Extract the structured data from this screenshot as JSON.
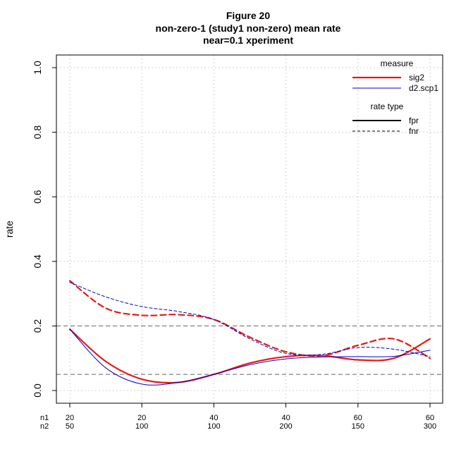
{
  "chart_data": {
    "type": "line",
    "title": "Figure 20",
    "subtitle_lines": [
      "non-zero-1 (study1 non-zero) mean rate",
      "near=0.1 xperiment"
    ],
    "xlabel": "",
    "ylabel": "rate",
    "ylim": [
      0,
      1
    ],
    "yticks": [
      "0.0",
      "0.2",
      "0.4",
      "0.6",
      "0.8",
      "1.0"
    ],
    "grid": true,
    "x_positions": [
      1,
      2,
      3,
      4,
      5,
      6
    ],
    "x_row_labels": [
      "n1",
      "n2"
    ],
    "x_tick_labels": [
      {
        "n1": "20",
        "n2": "50"
      },
      {
        "n1": "20",
        "n2": "100"
      },
      {
        "n1": "40",
        "n2": "100"
      },
      {
        "n1": "40",
        "n2": "200"
      },
      {
        "n1": "60",
        "n2": "150"
      },
      {
        "n1": "60",
        "n2": "300"
      }
    ],
    "reference_lines": [
      0.2,
      0.05
    ],
    "series": [
      {
        "name": "sig2",
        "rate_type": "fpr",
        "color": "#e31a1c",
        "dash": "solid",
        "width": "thick",
        "points": [
          [
            1,
            0.19
          ],
          [
            1.5,
            0.09
          ],
          [
            2,
            0.035
          ],
          [
            2.5,
            0.025
          ],
          [
            3,
            0.05
          ],
          [
            3.5,
            0.085
          ],
          [
            4,
            0.105
          ],
          [
            4.5,
            0.108
          ],
          [
            5,
            0.095
          ],
          [
            5.5,
            0.1
          ],
          [
            6,
            0.16
          ]
        ]
      },
      {
        "name": "d2.scp1",
        "rate_type": "fpr",
        "color": "#0000cc",
        "dash": "solid",
        "width": "thin",
        "points": [
          [
            1,
            0.19
          ],
          [
            1.5,
            0.07
          ],
          [
            2,
            0.02
          ],
          [
            2.5,
            0.025
          ],
          [
            3,
            0.05
          ],
          [
            3.5,
            0.08
          ],
          [
            4,
            0.098
          ],
          [
            4.5,
            0.104
          ],
          [
            5,
            0.105
          ],
          [
            5.5,
            0.106
          ],
          [
            6,
            0.125
          ]
        ]
      },
      {
        "name": "sig2",
        "rate_type": "fnr",
        "color": "#e31a1c",
        "dash": "dashed",
        "width": "thick",
        "points": [
          [
            1,
            0.34
          ],
          [
            1.5,
            0.255
          ],
          [
            2,
            0.233
          ],
          [
            2.5,
            0.235
          ],
          [
            3,
            0.22
          ],
          [
            3.5,
            0.165
          ],
          [
            4,
            0.12
          ],
          [
            4.5,
            0.108
          ],
          [
            5,
            0.14
          ],
          [
            5.5,
            0.16
          ],
          [
            6,
            0.1
          ]
        ]
      },
      {
        "name": "d2.scp1",
        "rate_type": "fnr",
        "color": "#0000cc",
        "dash": "dashed",
        "width": "thin",
        "points": [
          [
            1,
            0.335
          ],
          [
            1.5,
            0.29
          ],
          [
            2,
            0.26
          ],
          [
            2.5,
            0.245
          ],
          [
            3,
            0.22
          ],
          [
            3.5,
            0.16
          ],
          [
            4,
            0.115
          ],
          [
            4.5,
            0.112
          ],
          [
            5,
            0.133
          ],
          [
            5.5,
            0.128
          ],
          [
            6,
            0.105
          ]
        ]
      }
    ],
    "legend": {
      "placement": "top-right",
      "measure_title": "measure",
      "measure_items": [
        {
          "label": "sig2",
          "color": "#e31a1c",
          "width": "thick"
        },
        {
          "label": "d2.scp1",
          "color": "#0000cc",
          "width": "thin"
        }
      ],
      "rate_title": "rate type",
      "rate_items": [
        {
          "label": "fpr",
          "dash": "solid"
        },
        {
          "label": "fnr",
          "dash": "dashed"
        }
      ]
    }
  }
}
